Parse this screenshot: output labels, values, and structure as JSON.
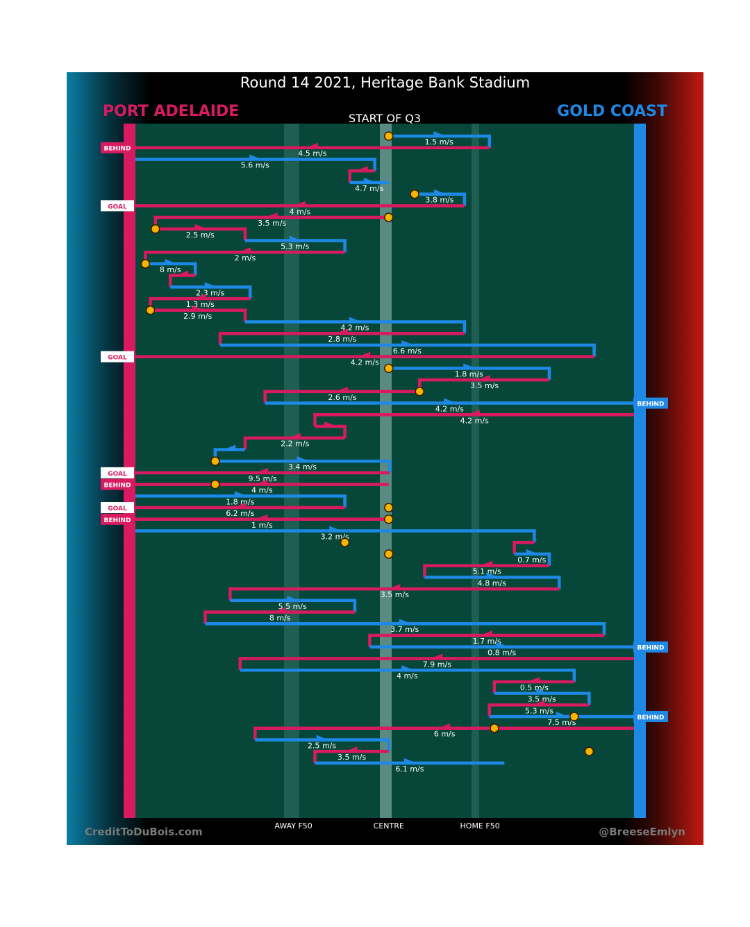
{
  "header": {
    "title": "Round 14 2021, Heritage Bank Stadium",
    "home_team": "PORT ADELAIDE",
    "away_team": "GOLD COAST",
    "period_label": "START OF Q3"
  },
  "footer": {
    "credit_left": "CreditToDuBois.com",
    "credit_right": "@BreeseEmlyn"
  },
  "colors": {
    "home": "#d81b60",
    "away": "#1e88e5",
    "field": "#064739",
    "stoppage": "#f5b400"
  },
  "chart_data": {
    "type": "line",
    "x_axis": {
      "ticks": [
        "AWAY F50",
        "CENTRE",
        "HOME F50"
      ]
    },
    "ylim": [
      0,
      59
    ],
    "chains": [
      {
        "team": "away",
        "x_start": "CENTRE",
        "x_end": 0.71,
        "speed": "1.5 m/s"
      },
      {
        "team": "home",
        "x_start": 0.71,
        "x_end": 0.0,
        "speed": "4.5 m/s",
        "result": "BEHIND"
      },
      {
        "team": "away",
        "x_start": 0.0,
        "x_end": 0.48,
        "speed": "5.6 m/s"
      },
      {
        "team": "home",
        "x_start": 0.48,
        "x_end": 0.43,
        "speed": ""
      },
      {
        "team": "away",
        "x_start": 0.43,
        "x_end": "CENTRE",
        "speed": "4.7 m/s"
      },
      {
        "team": "away",
        "x_start": 0.56,
        "x_end": 0.66,
        "speed": "3.8 m/s"
      },
      {
        "team": "home",
        "x_start": 0.66,
        "x_end": 0.0,
        "speed": "4 m/s",
        "result": "GOAL"
      },
      {
        "team": "home",
        "x_start": "CENTRE",
        "x_end": 0.04,
        "speed": "3.5 m/s"
      },
      {
        "team": "home",
        "x_start": 0.04,
        "x_end": 0.22,
        "speed": "2.5 m/s"
      },
      {
        "team": "away",
        "x_start": 0.22,
        "x_end": 0.42,
        "speed": "5.3 m/s"
      },
      {
        "team": "home",
        "x_start": 0.42,
        "x_end": 0.02,
        "speed": "2 m/s"
      },
      {
        "team": "away",
        "x_start": 0.02,
        "x_end": 0.12,
        "speed": "8 m/s"
      },
      {
        "team": "home",
        "x_start": 0.12,
        "x_end": 0.07,
        "speed": ""
      },
      {
        "team": "away",
        "x_start": 0.07,
        "x_end": 0.23,
        "speed": "2.3 m/s"
      },
      {
        "team": "home",
        "x_start": 0.23,
        "x_end": 0.03,
        "speed": "1.3 m/s"
      },
      {
        "team": "home",
        "x_start": 0.03,
        "x_end": 0.22,
        "speed": "2.9 m/s"
      },
      {
        "team": "away",
        "x_start": 0.22,
        "x_end": 0.66,
        "speed": "4.2 m/s"
      },
      {
        "team": "home",
        "x_start": 0.66,
        "x_end": 0.17,
        "speed": "2.8 m/s"
      },
      {
        "team": "away",
        "x_start": 0.17,
        "x_end": 0.92,
        "speed": "6.6 m/s"
      },
      {
        "team": "home",
        "x_start": 0.92,
        "x_end": 0.0,
        "speed": "4.2 m/s",
        "result": "GOAL"
      },
      {
        "team": "away",
        "x_start": "CENTRE",
        "x_end": 0.83,
        "speed": "1.8 m/s"
      },
      {
        "team": "home",
        "x_start": 0.83,
        "x_end": 0.57,
        "speed": "3.5 m/s"
      },
      {
        "team": "home",
        "x_start": 0.57,
        "x_end": 0.26,
        "speed": "2.6 m/s"
      },
      {
        "team": "away",
        "x_start": 0.26,
        "x_end": 1.0,
        "speed": "4.2 m/s",
        "result": "BEHIND"
      },
      {
        "team": "home",
        "x_start": 1.0,
        "x_end": 0.36,
        "speed": "4.2 m/s"
      },
      {
        "team": "home",
        "x_start": 0.36,
        "x_end": 0.42,
        "speed": ""
      },
      {
        "team": "home",
        "x_start": 0.42,
        "x_end": 0.22,
        "speed": "2.2 m/s"
      },
      {
        "team": "away",
        "x_start": 0.22,
        "x_end": 0.16,
        "speed": ""
      },
      {
        "team": "away",
        "x_start": 0.16,
        "x_end": 0.51,
        "speed": "3.4 m/s"
      },
      {
        "team": "home",
        "x_start": 0.51,
        "x_end": 0.0,
        "speed": "9.5 m/s",
        "result": "GOAL"
      },
      {
        "team": "home",
        "x_start": "CENTRE",
        "x_end": 0.0,
        "speed": "4 m/s",
        "result": "BEHIND"
      },
      {
        "team": "away",
        "x_start": 0.0,
        "x_end": 0.42,
        "speed": "1.8 m/s"
      },
      {
        "team": "home",
        "x_start": 0.42,
        "x_end": 0.0,
        "speed": "6.2 m/s",
        "result": "GOAL"
      },
      {
        "team": "home",
        "x_start": "CENTRE",
        "x_end": 0.0,
        "speed": "1 m/s",
        "result": "BEHIND"
      },
      {
        "team": "away",
        "x_start": 0.0,
        "x_end": 0.8,
        "speed": "3.2 m/s"
      },
      {
        "team": "home",
        "x_start": 0.8,
        "x_end": 0.76,
        "speed": ""
      },
      {
        "team": "away",
        "x_start": 0.76,
        "x_end": 0.83,
        "speed": "0.7 m/s"
      },
      {
        "team": "home",
        "x_start": 0.83,
        "x_end": 0.58,
        "speed": "5.1 m/s"
      },
      {
        "team": "away",
        "x_start": 0.58,
        "x_end": 0.85,
        "speed": "4.8 m/s"
      },
      {
        "team": "home",
        "x_start": 0.85,
        "x_end": 0.19,
        "speed": "3.5 m/s"
      },
      {
        "team": "away",
        "x_start": 0.19,
        "x_end": 0.44,
        "speed": "5.5 m/s"
      },
      {
        "team": "home",
        "x_start": 0.44,
        "x_end": 0.14,
        "speed": "8 m/s"
      },
      {
        "team": "away",
        "x_start": 0.14,
        "x_end": 0.94,
        "speed": "3.7 m/s"
      },
      {
        "team": "home",
        "x_start": 0.94,
        "x_end": 0.47,
        "speed": "1.7 m/s"
      },
      {
        "team": "away",
        "x_start": 0.47,
        "x_end": 1.0,
        "speed": "0.8 m/s",
        "result": "BEHIND"
      },
      {
        "team": "home",
        "x_start": 1.0,
        "x_end": 0.21,
        "speed": "7.9 m/s"
      },
      {
        "team": "away",
        "x_start": 0.21,
        "x_end": 0.88,
        "speed": "4 m/s"
      },
      {
        "team": "home",
        "x_start": 0.88,
        "x_end": 0.72,
        "speed": "0.5 m/s"
      },
      {
        "team": "away",
        "x_start": 0.72,
        "x_end": 0.91,
        "speed": "3.5 m/s"
      },
      {
        "team": "home",
        "x_start": 0.91,
        "x_end": 0.71,
        "speed": "5.3 m/s"
      },
      {
        "team": "away",
        "x_start": 0.71,
        "x_end": 1.0,
        "speed": "7.5 m/s",
        "result": "BEHIND"
      },
      {
        "team": "home",
        "x_start": 1.0,
        "x_end": 0.24,
        "speed": "6 m/s"
      },
      {
        "team": "away",
        "x_start": 0.24,
        "x_end": "CENTRE",
        "speed": "2.5 m/s"
      },
      {
        "team": "home",
        "x_start": "CENTRE",
        "x_end": 0.36,
        "speed": "3.5 m/s"
      },
      {
        "team": "away",
        "x_start": 0.36,
        "x_end": 0.74,
        "speed": "6.1 m/s"
      }
    ],
    "stoppages": [
      {
        "y": 0,
        "x": "CENTRE"
      },
      {
        "y": 5,
        "x": 0.56
      },
      {
        "y": 7,
        "x": "CENTRE"
      },
      {
        "y": 8,
        "x": 0.04
      },
      {
        "y": 11,
        "x": 0.02
      },
      {
        "y": 15,
        "x": 0.03
      },
      {
        "y": 20,
        "x": "CENTRE"
      },
      {
        "y": 22,
        "x": 0.57
      },
      {
        "y": 28,
        "x": 0.16
      },
      {
        "y": 30,
        "x": 0.16
      },
      {
        "y": 32,
        "x": "CENTRE"
      },
      {
        "y": 33,
        "x": "CENTRE"
      },
      {
        "y": 35,
        "x": 0.42
      },
      {
        "y": 36,
        "x": "CENTRE"
      },
      {
        "y": 50,
        "x": 0.88
      },
      {
        "y": 51,
        "x": 0.72
      },
      {
        "y": 53,
        "x": 0.91
      }
    ]
  }
}
